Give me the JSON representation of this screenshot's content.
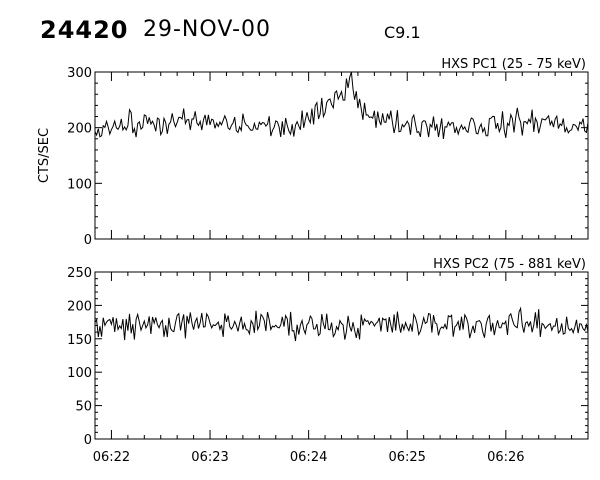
{
  "header": {
    "burst_number": "24420",
    "date": "29-NOV-00",
    "flare_class": "C9.1"
  },
  "chart_data": [
    {
      "type": "line",
      "title": "HXS PC1 (25 - 75 keV)",
      "ylabel": "CTS/SEC",
      "xlabel": "",
      "xlim": [
        "06:21:50",
        "06:26:50"
      ],
      "ylim": [
        0,
        300
      ],
      "yticks": [
        "0",
        "100",
        "200",
        "300"
      ],
      "xticks": [],
      "grid": false,
      "series": [
        {
          "x": [
            "06:21:50",
            "06:22:20",
            "06:22:50",
            "06:23:20",
            "06:23:50",
            "06:24:05",
            "06:24:15",
            "06:24:20",
            "06:24:25",
            "06:24:30",
            "06:24:40",
            "06:25:00",
            "06:25:20",
            "06:25:50",
            "06:26:20",
            "06:26:50"
          ],
          "values": [
            200,
            207,
            210,
            204,
            200,
            222,
            245,
            265,
            292,
            250,
            215,
            207,
            203,
            204,
            212,
            200
          ]
        }
      ]
    },
    {
      "type": "line",
      "title": "HXS PC2 (75 - 881 keV)",
      "ylabel": "",
      "xlabel": "",
      "xlim": [
        "06:21:50",
        "06:26:50"
      ],
      "ylim": [
        0,
        250
      ],
      "yticks": [
        "0",
        "50",
        "100",
        "150",
        "200",
        "250"
      ],
      "xticks": [
        "06:22",
        "06:23",
        "06:24",
        "06:25",
        "06:26"
      ],
      "grid": false,
      "series": [
        {
          "x": [
            "06:21:50",
            "06:22:50",
            "06:23:50",
            "06:24:50",
            "06:25:50",
            "06:26:50"
          ],
          "values": [
            170,
            172,
            171,
            170,
            172,
            170
          ]
        }
      ]
    }
  ],
  "colors": {
    "line": "#000000",
    "axis": "#000000",
    "background": "#ffffff"
  }
}
